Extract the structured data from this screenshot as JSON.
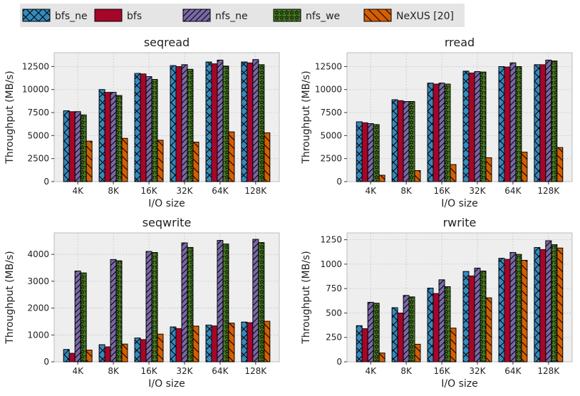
{
  "legend": [
    "bfs_ne",
    "bfs",
    "nfs_ne",
    "nfs_we",
    "NeXUS [20]"
  ],
  "series_colors": [
    "#348ABD",
    "#A60628",
    "#7A68A6",
    "#467821",
    "#D55E00"
  ],
  "series_hatches": [
    "cross-diag",
    "none",
    "diag",
    "star",
    "back-diag"
  ],
  "chart_data": [
    {
      "type": "bar",
      "title": "seqread",
      "xlabel": "I/O size",
      "ylabel": "Throughput (MB/s)",
      "categories": [
        "4K",
        "8K",
        "16K",
        "32K",
        "64K",
        "128K"
      ],
      "ylim": [
        0,
        14000
      ],
      "yticks": [
        0,
        2500,
        5000,
        7500,
        10000,
        12500
      ],
      "ytick_labels": [
        "0",
        "2500",
        "5000",
        "7500",
        "10000",
        "12500"
      ],
      "series": [
        {
          "name": "bfs_ne",
          "values": [
            7700,
            10000,
            11750,
            12600,
            13000,
            13000
          ]
        },
        {
          "name": "bfs",
          "values": [
            7600,
            9700,
            11700,
            12500,
            12800,
            12900
          ]
        },
        {
          "name": "nfs_ne",
          "values": [
            7600,
            9700,
            11400,
            12700,
            13200,
            13250
          ]
        },
        {
          "name": "nfs_we",
          "values": [
            7250,
            9350,
            11100,
            12200,
            12550,
            12700
          ]
        },
        {
          "name": "NeXUS [20]",
          "values": [
            4400,
            4700,
            4500,
            4300,
            5400,
            5300
          ]
        }
      ]
    },
    {
      "type": "bar",
      "title": "rread",
      "xlabel": "I/O size",
      "ylabel": "Throughput (MB/s)",
      "categories": [
        "4K",
        "8K",
        "16K",
        "32K",
        "64K",
        "128K"
      ],
      "ylim": [
        0,
        14000
      ],
      "yticks": [
        0,
        2500,
        5000,
        7500,
        10000,
        12500
      ],
      "ytick_labels": [
        "0",
        "2500",
        "5000",
        "7500",
        "10000",
        "12500"
      ],
      "series": [
        {
          "name": "bfs_ne",
          "values": [
            6500,
            8900,
            10700,
            12000,
            12500,
            12700
          ]
        },
        {
          "name": "bfs",
          "values": [
            6400,
            8800,
            10600,
            11800,
            12450,
            12700
          ]
        },
        {
          "name": "nfs_ne",
          "values": [
            6300,
            8700,
            10700,
            11950,
            12900,
            13200
          ]
        },
        {
          "name": "nfs_we",
          "values": [
            6200,
            8700,
            10600,
            11900,
            12500,
            13100
          ]
        },
        {
          "name": "NeXUS [20]",
          "values": [
            700,
            1200,
            1850,
            2600,
            3200,
            3700
          ]
        }
      ]
    },
    {
      "type": "bar",
      "title": "seqwrite",
      "xlabel": "I/O size",
      "ylabel": "Throughput (MB/s)",
      "categories": [
        "4K",
        "8K",
        "16K",
        "32K",
        "64K",
        "128K"
      ],
      "ylim": [
        0,
        4800
      ],
      "yticks": [
        0,
        1000,
        2000,
        3000,
        4000
      ],
      "ytick_labels": [
        "0",
        "1000",
        "2000",
        "3000",
        "4000"
      ],
      "series": [
        {
          "name": "bfs_ne",
          "values": [
            460,
            640,
            890,
            1300,
            1370,
            1480
          ]
        },
        {
          "name": "bfs",
          "values": [
            320,
            560,
            830,
            1240,
            1340,
            1460
          ]
        },
        {
          "name": "nfs_ne",
          "values": [
            3380,
            3810,
            4110,
            4430,
            4520,
            4560
          ]
        },
        {
          "name": "nfs_we",
          "values": [
            3310,
            3760,
            4070,
            4260,
            4390,
            4440
          ]
        },
        {
          "name": "NeXUS [20]",
          "values": [
            440,
            660,
            1030,
            1330,
            1440,
            1510
          ]
        }
      ]
    },
    {
      "type": "bar",
      "title": "rwrite",
      "xlabel": "I/O size",
      "ylabel": "Throughput (MB/s)",
      "categories": [
        "4K",
        "8K",
        "16K",
        "32K",
        "64K",
        "128K"
      ],
      "ylim": [
        0,
        1320
      ],
      "yticks": [
        0,
        250,
        500,
        750,
        1000,
        1250
      ],
      "ytick_labels": [
        "0",
        "250",
        "500",
        "750",
        "1000",
        "1250"
      ],
      "series": [
        {
          "name": "bfs_ne",
          "values": [
            370,
            555,
            755,
            925,
            1060,
            1170
          ]
        },
        {
          "name": "bfs",
          "values": [
            340,
            500,
            700,
            880,
            1050,
            1150
          ]
        },
        {
          "name": "nfs_ne",
          "values": [
            610,
            680,
            840,
            960,
            1120,
            1240
          ]
        },
        {
          "name": "nfs_we",
          "values": [
            600,
            665,
            770,
            930,
            1100,
            1200
          ]
        },
        {
          "name": "NeXUS [20]",
          "values": [
            90,
            180,
            345,
            655,
            1040,
            1165
          ]
        }
      ]
    }
  ]
}
